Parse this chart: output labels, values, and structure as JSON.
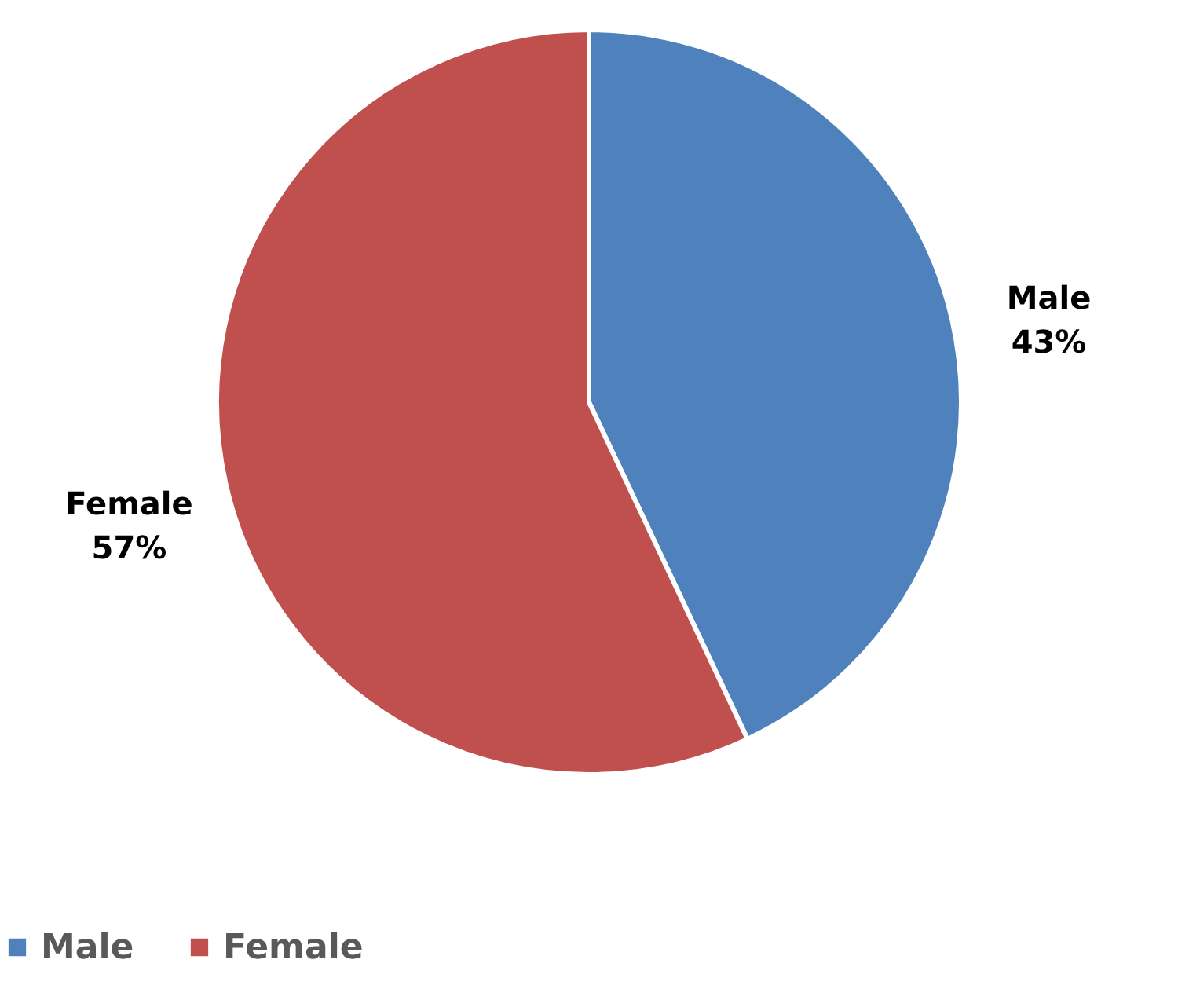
{
  "chart_data": {
    "type": "pie",
    "categories": [
      "Male",
      "Female"
    ],
    "values": [
      43,
      57
    ],
    "colors": [
      "#4f81bd",
      "#c0504d"
    ],
    "value_labels": [
      "43%",
      "57%"
    ],
    "legend": "bottom"
  }
}
